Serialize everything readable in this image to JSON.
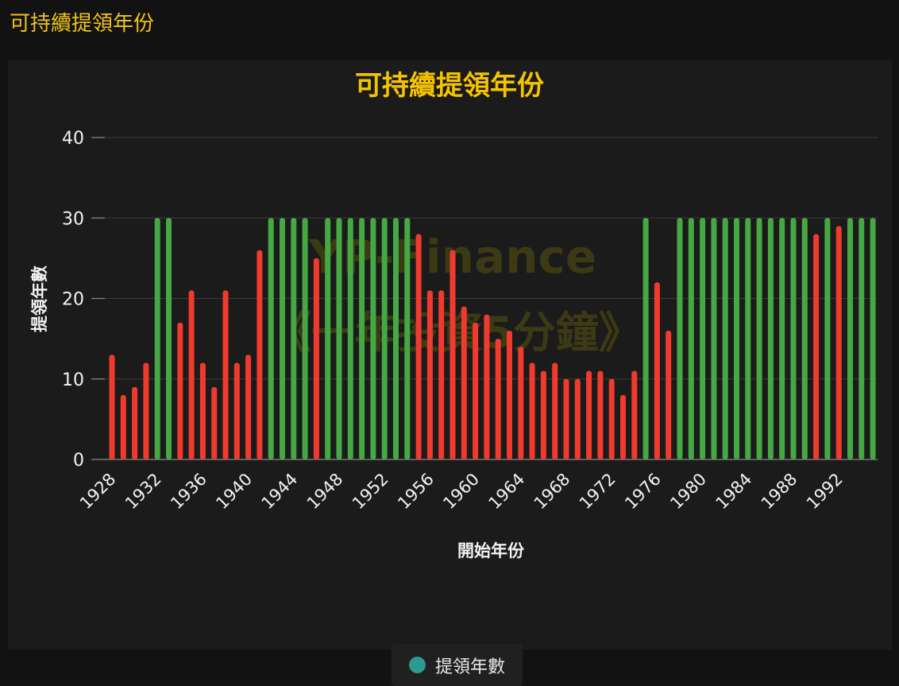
{
  "header": {
    "title": "可持續提領年份"
  },
  "legend": {
    "label": "提領年數"
  },
  "watermark": {
    "line1": "YP-Finance",
    "line2": "《一年投資5分鐘》"
  },
  "colors": {
    "title": "#f5c400",
    "success": "#45a844",
    "failure": "#f03a2e",
    "legend_swatch": "#2b9a8f",
    "grid": "#3a3a3a",
    "axis_text": "#f2f2f2"
  },
  "chart_data": {
    "type": "bar",
    "title": "可持續提領年份",
    "xlabel": "開始年份",
    "ylabel": "提領年數",
    "ylim": [
      0,
      40
    ],
    "yticks": [
      0,
      10,
      20,
      30,
      40
    ],
    "grid": true,
    "legend_position": "bottom-center",
    "x_tick_labels": [
      "1928",
      "1932",
      "1936",
      "1940",
      "1944",
      "1948",
      "1952",
      "1956",
      "1960",
      "1964",
      "1968",
      "1972",
      "1976",
      "1980",
      "1984",
      "1988",
      "1992"
    ],
    "categories": [
      1928,
      1929,
      1930,
      1931,
      1932,
      1933,
      1934,
      1935,
      1936,
      1937,
      1938,
      1939,
      1940,
      1941,
      1942,
      1943,
      1944,
      1945,
      1946,
      1947,
      1948,
      1949,
      1950,
      1951,
      1952,
      1953,
      1954,
      1955,
      1956,
      1957,
      1958,
      1959,
      1960,
      1961,
      1962,
      1963,
      1964,
      1965,
      1966,
      1967,
      1968,
      1969,
      1970,
      1971,
      1972,
      1973,
      1974,
      1975,
      1976,
      1977,
      1978,
      1979,
      1980,
      1981,
      1982,
      1983,
      1984,
      1985,
      1986,
      1987,
      1988,
      1989,
      1990,
      1991,
      1992,
      1993,
      1994,
      1995
    ],
    "series": [
      {
        "name": "提領年數",
        "values": [
          13,
          8,
          9,
          12,
          30,
          30,
          17,
          21,
          12,
          9,
          21,
          12,
          13,
          26,
          30,
          30,
          30,
          30,
          25,
          30,
          30,
          30,
          30,
          30,
          30,
          30,
          30,
          28,
          21,
          21,
          26,
          19,
          17,
          18,
          15,
          16,
          14,
          12,
          11,
          12,
          10,
          10,
          11,
          11,
          10,
          8,
          11,
          30,
          22,
          16,
          30,
          30,
          30,
          30,
          30,
          30,
          30,
          30,
          30,
          30,
          30,
          30,
          28,
          30,
          29,
          30,
          30,
          30
        ]
      }
    ]
  }
}
